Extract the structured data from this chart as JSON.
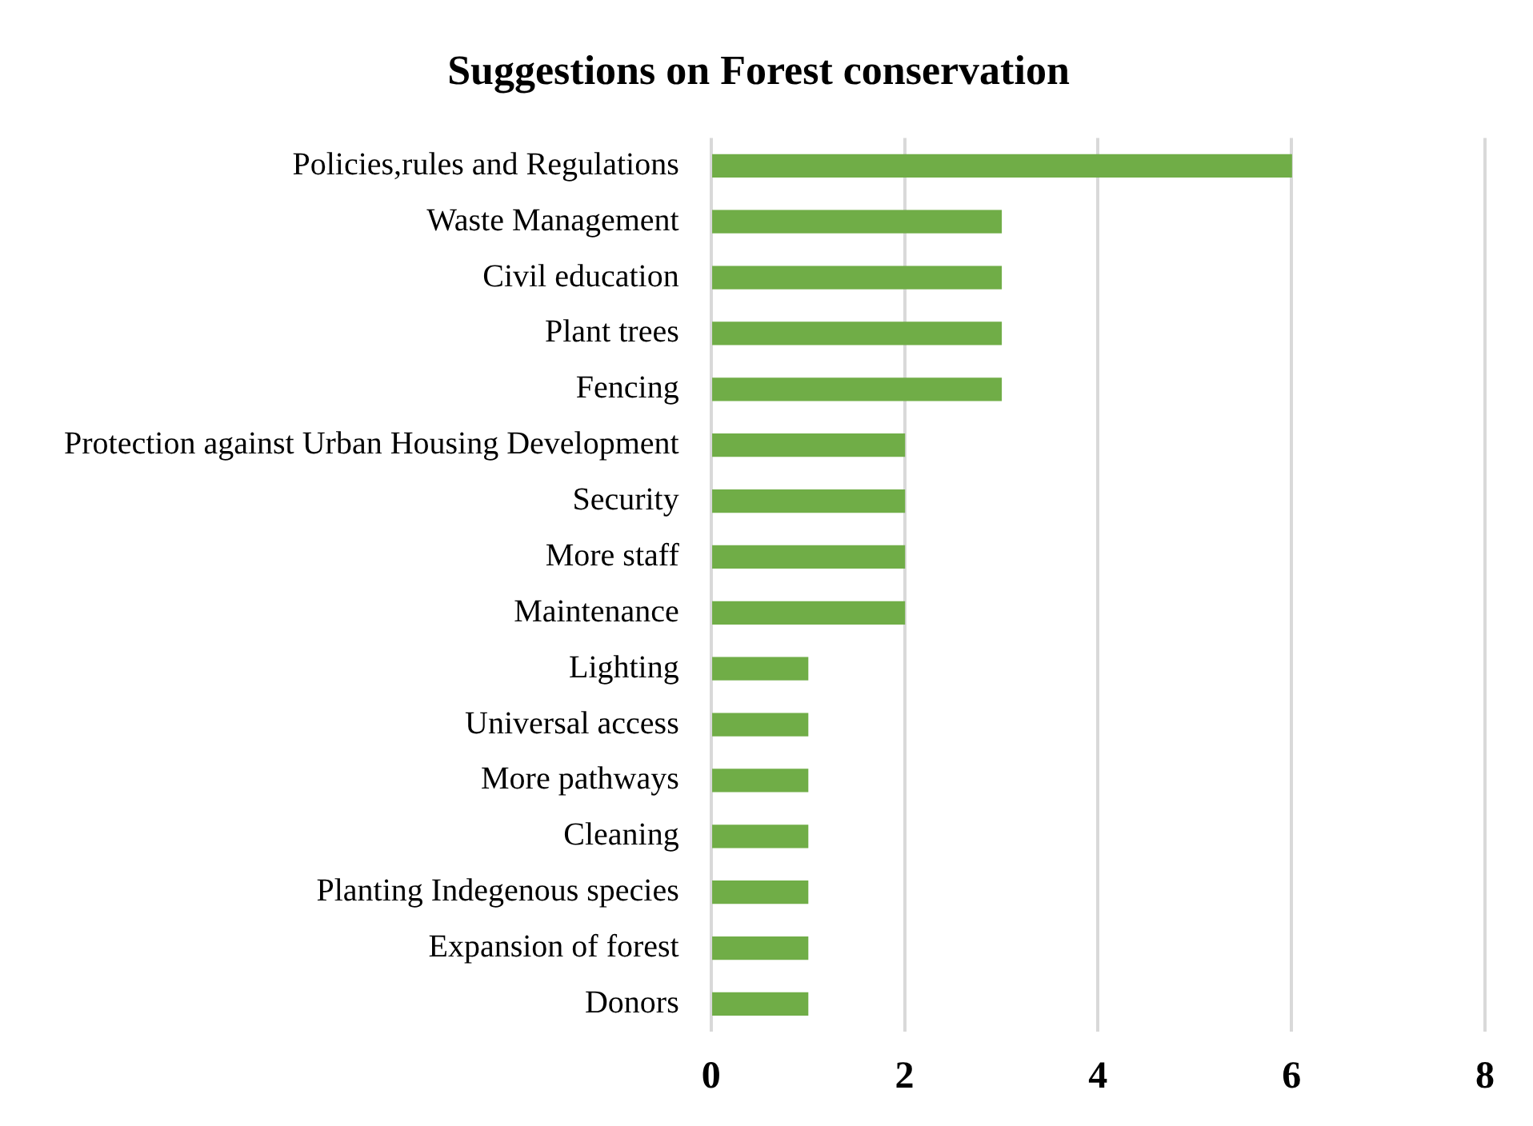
{
  "chart_data": {
    "type": "bar",
    "orientation": "horizontal",
    "title": "Suggestions on Forest conservation",
    "categories": [
      "Policies,rules and Regulations",
      "Waste Management",
      "Civil education",
      "Plant trees",
      "Fencing",
      "Protection against Urban Housing Development",
      "Security",
      "More staff",
      "Maintenance",
      "Lighting",
      "Universal access",
      "More pathways",
      "Cleaning",
      "Planting Indegenous species",
      "Expansion of forest",
      "Donors"
    ],
    "values": [
      6,
      3,
      3,
      3,
      3,
      2,
      2,
      2,
      2,
      1,
      1,
      1,
      1,
      1,
      1,
      1
    ],
    "color": "#70ad47",
    "xlim": [
      0,
      8
    ],
    "xticks": [
      0,
      2,
      4,
      6,
      8
    ],
    "grid": "x",
    "legend": false
  }
}
